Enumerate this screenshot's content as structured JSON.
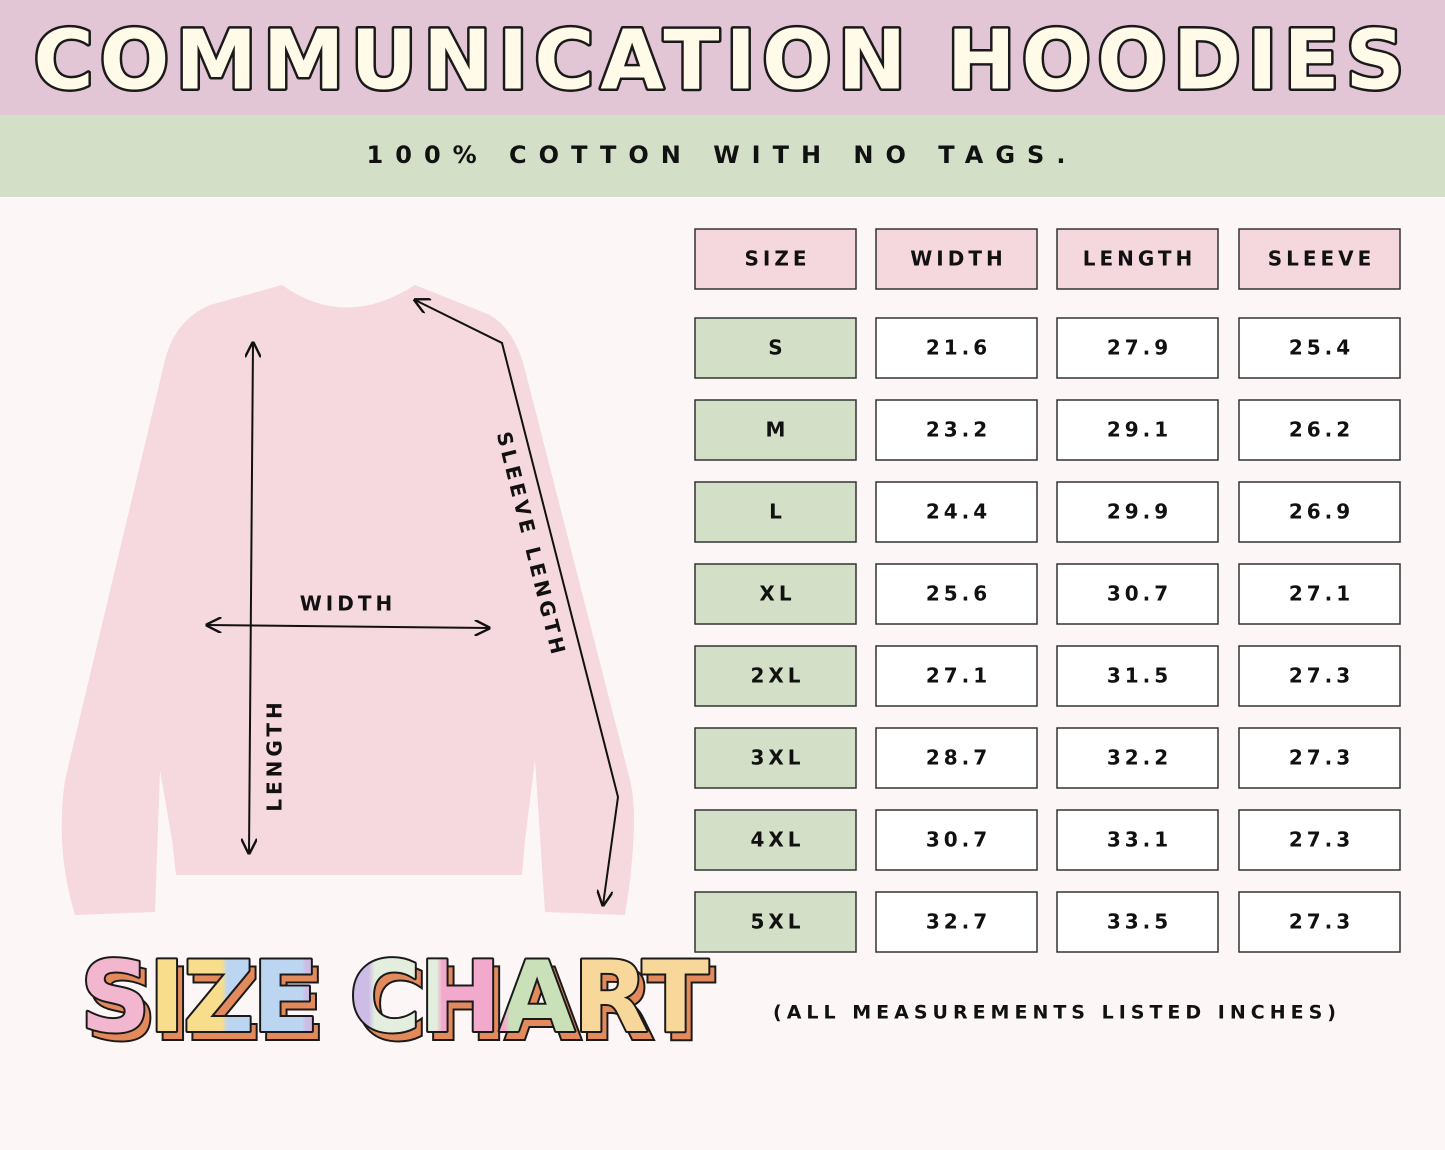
{
  "header": {
    "title": "COMMUNICATION HOODIES",
    "subtitle": "100% COTTON WITH NO TAGS."
  },
  "diagram": {
    "width_label": "WIDTH",
    "length_label": "LENGTH",
    "sleeve_label": "SLEEVE LENGTH"
  },
  "footer": {
    "title": "SIZE CHART",
    "note": "(ALL MEASUREMENTS LISTED INCHES)"
  },
  "table": {
    "headers": [
      "SIZE",
      "WIDTH",
      "LENGTH",
      "SLEEVE"
    ],
    "rows": [
      [
        "S",
        "21.6",
        "27.9",
        "25.4"
      ],
      [
        "M",
        "23.2",
        "29.1",
        "26.2"
      ],
      [
        "L",
        "24.4",
        "29.9",
        "26.9"
      ],
      [
        "XL",
        "25.6",
        "30.7",
        "27.1"
      ],
      [
        "2XL",
        "27.1",
        "31.5",
        "27.3"
      ],
      [
        "3XL",
        "28.7",
        "32.2",
        "27.3"
      ],
      [
        "4XL",
        "30.7",
        "33.1",
        "27.3"
      ],
      [
        "5XL",
        "32.7",
        "33.5",
        "27.3"
      ]
    ]
  }
}
